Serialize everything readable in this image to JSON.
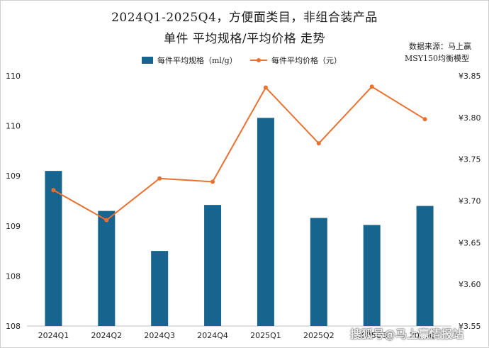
{
  "chart_data": {
    "type": "bar+line",
    "title": "2024Q1-2025Q4，方便面类目，非组合装产品",
    "subtitle": "单件 平均规格/平均价格 走势",
    "source_lines": [
      "数据来源：马上赢",
      "MSY150均衡模型"
    ],
    "categories": [
      "2024Q1",
      "2024Q2",
      "2024Q3",
      "2024Q4",
      "2025Q1",
      "2025Q2",
      "2025Q3",
      "2025Q4"
    ],
    "series": [
      {
        "name": "每件平均规格（ml/g）",
        "type": "bar",
        "axis": "left",
        "color": "#17658e",
        "values": [
          109.3,
          108.9,
          108.5,
          108.96,
          109.83,
          108.83,
          108.76,
          108.95
        ]
      },
      {
        "name": "每件平均价格（元）",
        "type": "line",
        "axis": "right",
        "color": "#e8712f",
        "values": [
          3.713,
          3.677,
          3.727,
          3.723,
          3.836,
          3.769,
          3.837,
          3.798
        ]
      }
    ],
    "left_axis": {
      "ylim": [
        107.75,
        110.25
      ],
      "ticks": [
        107.75,
        108.25,
        108.75,
        109.25,
        109.75,
        110.25
      ],
      "tick_labels": [
        "108",
        "108",
        "109",
        "109",
        "110",
        "110"
      ]
    },
    "right_axis": {
      "ylim": [
        3.55,
        3.85
      ],
      "ticks": [
        3.55,
        3.6,
        3.65,
        3.7,
        3.75,
        3.8,
        3.85
      ],
      "tick_labels": [
        "¥3.55",
        "¥3.60",
        "¥3.65",
        "¥3.70",
        "¥3.75",
        "¥3.80",
        "¥3.85"
      ]
    },
    "grid": false,
    "legend_position": "top"
  },
  "watermark": "搜狐号@马上赢情报站"
}
